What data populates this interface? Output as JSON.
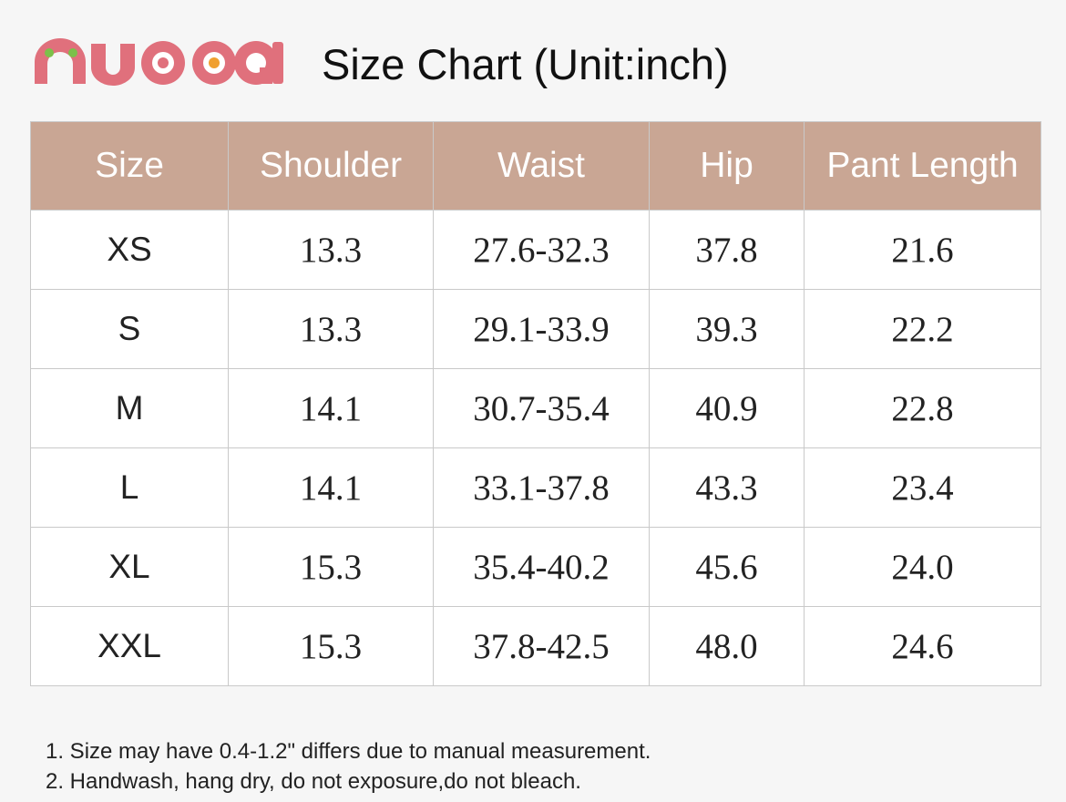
{
  "header": {
    "title": "Size Chart (Unit:inch)"
  },
  "table": {
    "columns": [
      "Size",
      "Shoulder",
      "Waist",
      "Hip",
      "Pant Length"
    ],
    "rows": [
      [
        "XS",
        "13.3",
        "27.6-32.3",
        "37.8",
        "21.6"
      ],
      [
        "S",
        "13.3",
        "29.1-33.9",
        "39.3",
        "22.2"
      ],
      [
        "M",
        "14.1",
        "30.7-35.4",
        "40.9",
        "22.8"
      ],
      [
        "L",
        "14.1",
        "33.1-37.8",
        "43.3",
        "23.4"
      ],
      [
        "XL",
        "15.3",
        "35.4-40.2",
        "45.6",
        "24.0"
      ],
      [
        "XXL",
        "15.3",
        "37.8-42.5",
        "48.0",
        "24.6"
      ]
    ]
  },
  "notes": [
    "1. Size may have 0.4-1.2\" differs due to manual measurement.",
    "2. Handwash, hang dry, do not exposure,do not bleach."
  ]
}
